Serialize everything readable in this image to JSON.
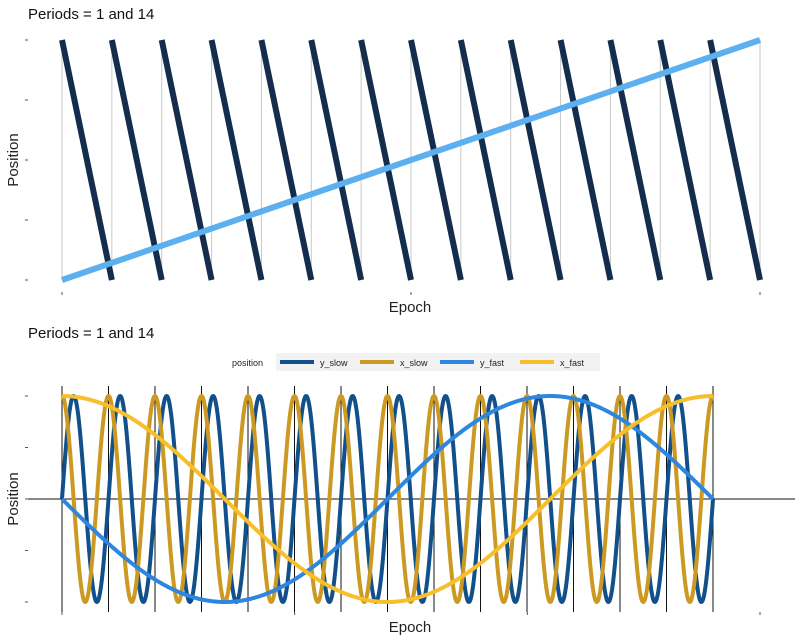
{
  "chart_data": [
    {
      "type": "line",
      "title": "Periods = 1 and 14",
      "xlabel": "Epoch",
      "ylabel": "Position",
      "x_range": [
        0,
        1
      ],
      "y_range": [
        0,
        1
      ],
      "tick_labels_shown": false,
      "vertical_gridlines": true,
      "legend": "none",
      "series": [
        {
          "color": "#142d4c",
          "periods": 14,
          "shape": "sawtooth-descending",
          "from": 1,
          "to": 0
        },
        {
          "color": "#5db0ef",
          "periods": 1,
          "shape": "linear-ascending",
          "from": 0,
          "to": 1
        }
      ]
    },
    {
      "type": "line",
      "title": "Periods = 1 and 14",
      "xlabel": "Epoch",
      "ylabel": "Position",
      "x_range": [
        0,
        1
      ],
      "y_range": [
        -1,
        1
      ],
      "tick_labels_shown": false,
      "vertical_gridlines": true,
      "zero_line": true,
      "legend_placement": "top",
      "legend_title": "position",
      "series": [
        {
          "name": "y_slow",
          "color": "#11508a",
          "periods": 14,
          "function": "sin"
        },
        {
          "name": "x_slow",
          "color": "#cc9a22",
          "periods": 14,
          "function": "cos"
        },
        {
          "name": "y_fast",
          "color": "#2e86de",
          "periods": 1,
          "function": "-sin"
        },
        {
          "name": "x_fast",
          "color": "#f6bf2b",
          "periods": 1,
          "function": "cos"
        }
      ]
    }
  ]
}
